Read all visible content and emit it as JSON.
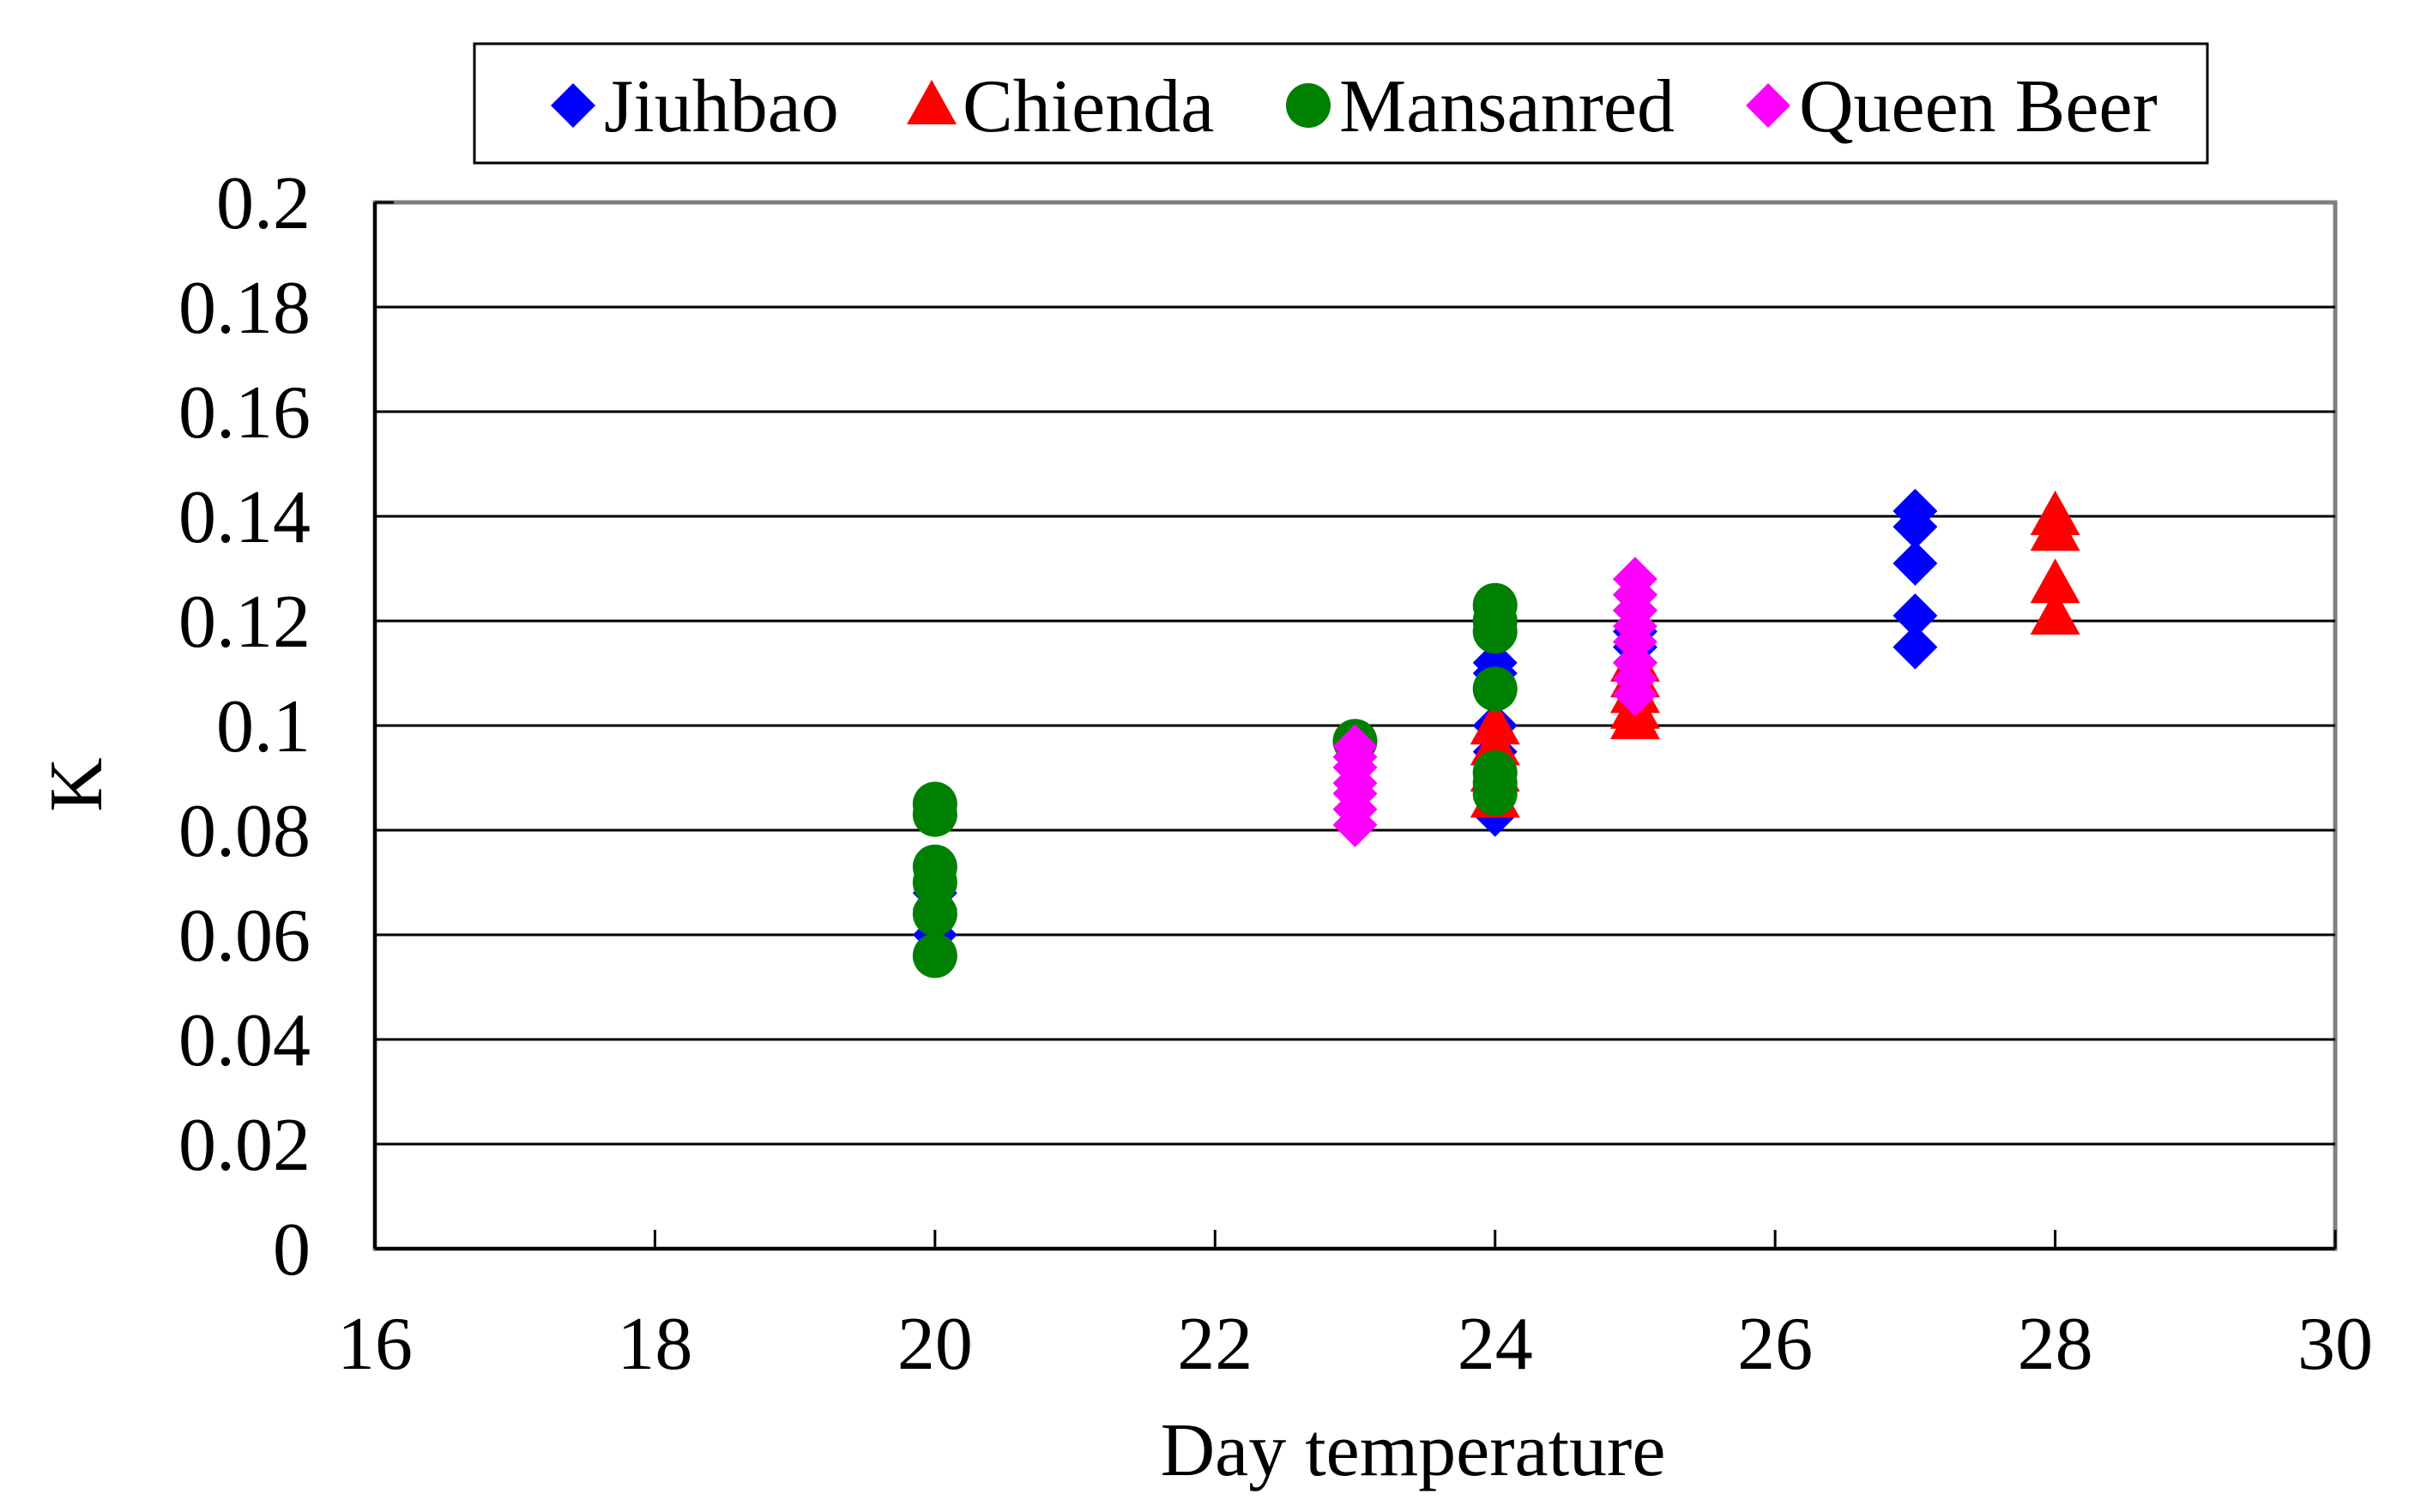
{
  "chart_data": {
    "type": "scatter",
    "title": "",
    "xlabel": "Day temperature",
    "ylabel": "K",
    "xlim": [
      16,
      30
    ],
    "ylim": [
      0,
      0.2
    ],
    "xticks": [
      16,
      18,
      20,
      22,
      24,
      26,
      28,
      30
    ],
    "yticks": [
      0,
      0.02,
      0.04,
      0.06,
      0.08,
      0.1,
      0.12,
      0.14,
      0.16,
      0.18,
      0.2
    ],
    "grid": "horizontal",
    "legend": "top",
    "series": [
      {
        "name": "Jiuhbao",
        "color": "#0000ff",
        "marker": "diamond",
        "points": [
          [
            20,
            0.06
          ],
          [
            20,
            0.065
          ],
          [
            20,
            0.068
          ],
          [
            24,
            0.083
          ],
          [
            24,
            0.088
          ],
          [
            24,
            0.095
          ],
          [
            24,
            0.1
          ],
          [
            24,
            0.11
          ],
          [
            24,
            0.112
          ],
          [
            24,
            0.12
          ],
          [
            25,
            0.112
          ],
          [
            25,
            0.115
          ],
          [
            25,
            0.118
          ],
          [
            25,
            0.122
          ],
          [
            25,
            0.125
          ],
          [
            27,
            0.115
          ],
          [
            27,
            0.121
          ],
          [
            27,
            0.131
          ],
          [
            27,
            0.138
          ],
          [
            27,
            0.141
          ]
        ]
      },
      {
        "name": "Chienda",
        "color": "#ff0000",
        "marker": "triangle",
        "points": [
          [
            24,
            0.086
          ],
          [
            24,
            0.091
          ],
          [
            24,
            0.096
          ],
          [
            24,
            0.1
          ],
          [
            25,
            0.101
          ],
          [
            25,
            0.103
          ],
          [
            25,
            0.106
          ],
          [
            25,
            0.109
          ],
          [
            25,
            0.112
          ],
          [
            28,
            0.121
          ],
          [
            28,
            0.127
          ],
          [
            28,
            0.137
          ],
          [
            28,
            0.14
          ]
        ]
      },
      {
        "name": "Mansanred",
        "color": "#008000",
        "marker": "circle",
        "points": [
          [
            20,
            0.056
          ],
          [
            20,
            0.064
          ],
          [
            20,
            0.07
          ],
          [
            20,
            0.073
          ],
          [
            20,
            0.083
          ],
          [
            20,
            0.085
          ],
          [
            23,
            0.097
          ],
          [
            24,
            0.087
          ],
          [
            24,
            0.089
          ],
          [
            24,
            0.091
          ],
          [
            24,
            0.107
          ],
          [
            24,
            0.118
          ],
          [
            24,
            0.12
          ],
          [
            24,
            0.123
          ]
        ]
      },
      {
        "name": "Queen Beer",
        "color": "#ff00ff",
        "marker": "diamond",
        "points": [
          [
            23,
            0.081
          ],
          [
            23,
            0.084
          ],
          [
            23,
            0.087
          ],
          [
            23,
            0.089
          ],
          [
            23,
            0.092
          ],
          [
            23,
            0.094
          ],
          [
            23,
            0.096
          ],
          [
            25,
            0.106
          ],
          [
            25,
            0.109
          ],
          [
            25,
            0.112
          ],
          [
            25,
            0.116
          ],
          [
            25,
            0.119
          ],
          [
            25,
            0.122
          ],
          [
            25,
            0.125
          ],
          [
            25,
            0.128
          ]
        ]
      }
    ]
  }
}
